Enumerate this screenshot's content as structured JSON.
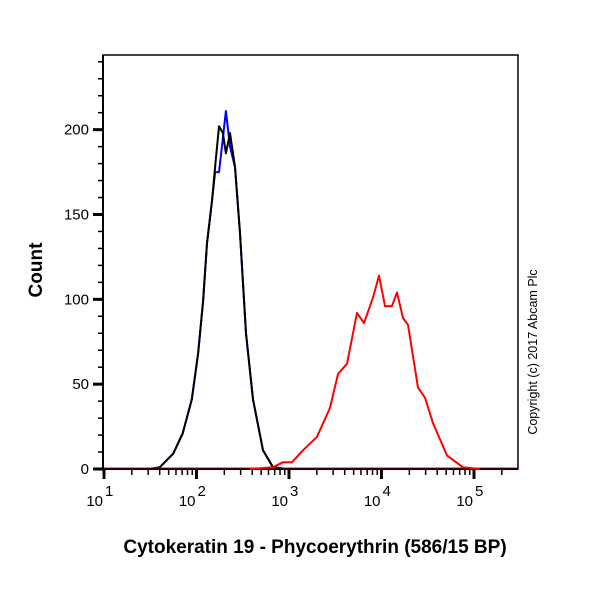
{
  "chart_data": {
    "type": "line",
    "title": "",
    "xlabel": "Cytokeratin 19 - Phycoerythrin (586/15 BP)",
    "ylabel": "Count",
    "xscale": "log",
    "xlim": [
      10,
      300000
    ],
    "ylim": [
      0,
      244
    ],
    "x_ticks": [
      {
        "value": 10,
        "base": "10",
        "exp": "1"
      },
      {
        "value": 100,
        "base": "10",
        "exp": "2"
      },
      {
        "value": 1000,
        "base": "10",
        "exp": "3"
      },
      {
        "value": 10000,
        "base": "10",
        "exp": "4"
      },
      {
        "value": 100000,
        "base": "10",
        "exp": "5"
      }
    ],
    "y_ticks": [
      {
        "value": 0,
        "label": "0"
      },
      {
        "value": 50,
        "label": "50"
      },
      {
        "value": 100,
        "label": "100"
      },
      {
        "value": 150,
        "label": "150"
      },
      {
        "value": 200,
        "label": "200"
      }
    ],
    "grid": false,
    "legend": "none",
    "annotation": "Copyright (c) 2017 Abcam Plc",
    "series": [
      {
        "color": "#0000ff",
        "x": [
          31,
          40,
          56,
          71,
          89,
          104,
          118,
          130,
          147,
          159,
          175,
          193,
          208,
          230,
          261,
          295,
          343,
          408,
          523,
          671,
          951
        ],
        "y": [
          0,
          1,
          9,
          21,
          41,
          68,
          99,
          133,
          158,
          175,
          175,
          195,
          211,
          190,
          178,
          139,
          80,
          41,
          11,
          1,
          0
        ]
      },
      {
        "color": "#000000",
        "x": [
          31,
          40,
          56,
          71,
          89,
          104,
          118,
          130,
          147,
          159,
          175,
          193,
          208,
          230,
          261,
          295,
          343,
          408,
          523,
          671,
          951
        ],
        "y": [
          0,
          1,
          9,
          21,
          41,
          68,
          99,
          133,
          158,
          178,
          202,
          198,
          186,
          198,
          178,
          139,
          80,
          41,
          11,
          1,
          0
        ]
      },
      {
        "color": "#ff0000",
        "x": [
          378,
          671,
          861,
          1077,
          1416,
          2008,
          2774,
          3386,
          4240,
          5436,
          6467,
          8093,
          9397,
          10920,
          13000,
          14720,
          17070,
          19330,
          24820,
          29510,
          36060,
          51050,
          76030,
          116100
        ],
        "y": [
          0,
          1,
          4,
          4,
          11,
          19,
          36,
          56,
          62,
          92,
          86,
          101,
          114,
          96,
          96,
          104,
          89,
          85,
          48,
          42,
          27,
          8,
          1,
          0
        ]
      }
    ]
  }
}
